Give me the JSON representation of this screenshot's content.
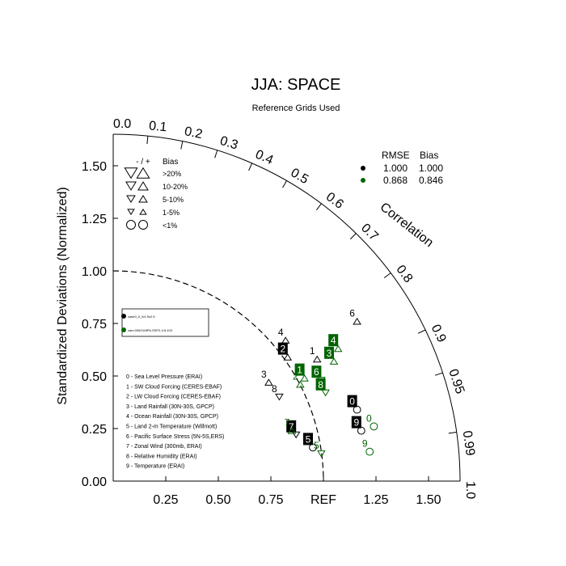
{
  "title": "JJA: SPACE",
  "subtitle": "Reference Grids Used",
  "colors": {
    "black": "#000000",
    "green": "#006400",
    "white": "#ffffff"
  },
  "chart_data": {
    "type": "scatter",
    "subtype": "taylor-diagram",
    "ylabel": "Standardized Deviations (Normalized)",
    "arc_label": "Correlation",
    "ref_label": "REF",
    "ylim": [
      0,
      1.65
    ],
    "y_ticks": [
      "0.00",
      "0.25",
      "0.50",
      "0.75",
      "1.00",
      "1.25",
      "1.50"
    ],
    "x_ticks": [
      "0.25",
      "0.50",
      "0.75",
      "REF",
      "1.25",
      "1.50"
    ],
    "corr_ticks": [
      "0.0",
      "0.1",
      "0.2",
      "0.3",
      "0.4",
      "0.5",
      "0.6",
      "0.7",
      "0.8",
      "0.9",
      "0.95",
      "0.99",
      "1.0"
    ],
    "bias_legend": {
      "header_sign": "- / +",
      "header": "Bias",
      "rows": [
        ">20%",
        "10-20%",
        "5-10%",
        "1-5%",
        "<1%"
      ]
    },
    "rmse_legend": {
      "headers": [
        "RMSE",
        "Bias"
      ],
      "rows": [
        {
          "color": "black",
          "rmse": "1.000",
          "bias": "1.000"
        },
        {
          "color": "green",
          "rmse": "0.868",
          "bias": "0.846"
        }
      ]
    },
    "case_legend": [
      {
        "color": "black",
        "label": "case0_0_fv1.9x2.5"
      },
      {
        "color": "green",
        "label": "cam.005/CMIP6-SSP2-4.5:103"
      }
    ],
    "variable_legend": [
      "0 - Sea Level Pressure (ERAI)",
      "1 - SW Cloud Forcing (CERES-EBAF)",
      "2 - LW Cloud Forcing (CERES-EBAF)",
      "3 - Land Rainfall (30N-30S, GPCP)",
      "4 - Ocean Rainfall (30N-30S, GPCP)",
      "5 - Land 2-m Temperature (Willmott)",
      "6 - Pacific Surface Stress (5N-5S,ERS)",
      "7 - Zonal Wind (300mb, ERAI)",
      "8 - Relative Humidity (ERAI)",
      "9 - Temperature (ERAI)"
    ],
    "series": [
      {
        "color": "black",
        "points": [
          {
            "label": "0",
            "x": 1.16,
            "y": 0.34,
            "marker": "circle",
            "boxed": true
          },
          {
            "label": "1",
            "x": 0.97,
            "y": 0.58,
            "marker": "triangle-up",
            "boxed": false
          },
          {
            "label": "2",
            "x": 0.83,
            "y": 0.59,
            "marker": "triangle-up",
            "boxed": true
          },
          {
            "label": "3",
            "x": 0.74,
            "y": 0.47,
            "marker": "triangle-up",
            "boxed": false
          },
          {
            "label": "4",
            "x": 0.82,
            "y": 0.67,
            "marker": "triangle-up",
            "boxed": false
          },
          {
            "label": "5",
            "x": 0.95,
            "y": 0.16,
            "marker": "circle",
            "boxed": true
          },
          {
            "label": "6",
            "x": 1.16,
            "y": 0.76,
            "marker": "triangle-up",
            "boxed": false
          },
          {
            "label": "7",
            "x": 0.87,
            "y": 0.22,
            "marker": "triangle-down",
            "boxed": true
          },
          {
            "label": "8",
            "x": 0.79,
            "y": 0.4,
            "marker": "triangle-down",
            "boxed": false
          },
          {
            "label": "9",
            "x": 1.18,
            "y": 0.24,
            "marker": "circle",
            "boxed": true
          }
        ]
      },
      {
        "color": "green",
        "points": [
          {
            "label": "1",
            "x": 0.91,
            "y": 0.49,
            "marker": "triangle-up",
            "boxed": true
          },
          {
            "label": "2",
            "x": 0.89,
            "y": 0.46,
            "marker": "triangle-up",
            "boxed": false
          },
          {
            "label": "3",
            "x": 1.05,
            "y": 0.57,
            "marker": "triangle-up",
            "boxed": true
          },
          {
            "label": "4",
            "x": 1.07,
            "y": 0.63,
            "marker": "triangle-up",
            "boxed": true
          },
          {
            "label": "5",
            "x": 0.99,
            "y": 0.13,
            "marker": "triangle-down",
            "boxed": false
          },
          {
            "label": "6",
            "x": 0.99,
            "y": 0.48,
            "marker": "triangle-down",
            "boxed": true
          },
          {
            "label": "7",
            "x": 0.85,
            "y": 0.24,
            "marker": "triangle-up",
            "boxed": false
          },
          {
            "label": "8",
            "x": 1.01,
            "y": 0.42,
            "marker": "triangle-down",
            "boxed": true
          },
          {
            "label": "9",
            "x": 1.22,
            "y": 0.14,
            "marker": "circle",
            "boxed": false
          },
          {
            "label": "0",
            "x": 1.24,
            "y": 0.26,
            "marker": "circle",
            "boxed": false
          }
        ]
      }
    ]
  }
}
